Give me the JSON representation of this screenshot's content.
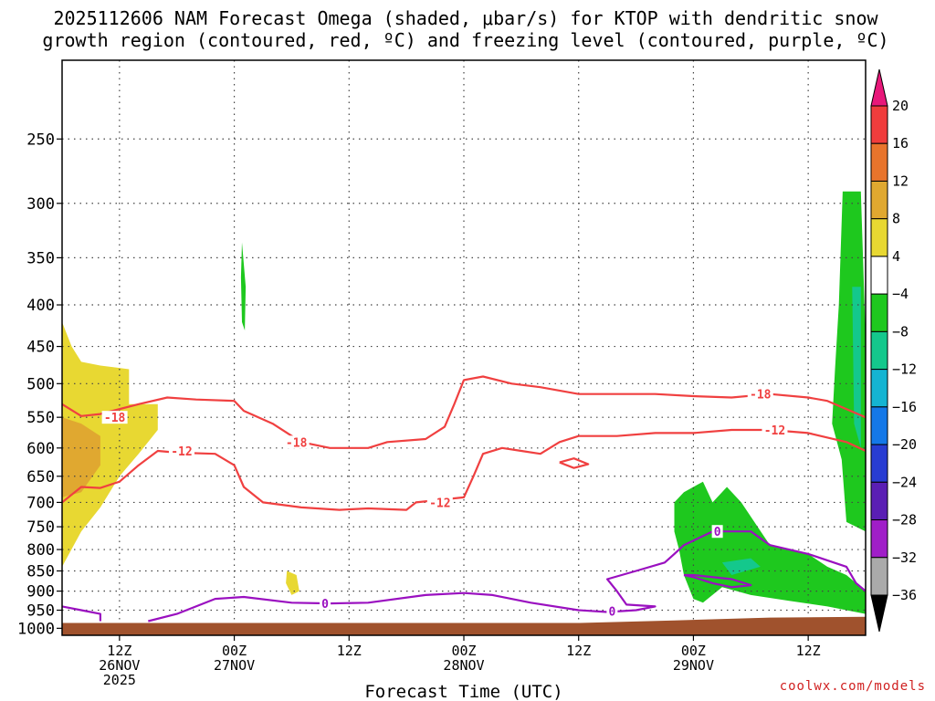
{
  "title_line1": "2025112606 NAM Forecast Omega (shaded, μbar/s) for KTOP with dendritic snow",
  "title_line2": "growth region (contoured, red, ºC) and freezing level (contoured, purple, ºC)",
  "credit": "coolwx.com/models",
  "chart_data": {
    "type": "heatmap",
    "title": "2025112606 NAM Forecast Omega (shaded, μbar/s) for KTOP with dendritic snow growth region (contoured, red, ºC) and freezing level (contoured, purple, ºC)",
    "xlabel": "Forecast Time (UTC)",
    "ylabel": "",
    "x_range_hours": [
      6,
      90
    ],
    "y_scale": "log",
    "y_reversed": true,
    "ylim": [
      1020,
      200
    ],
    "y_ticks": [
      250,
      300,
      350,
      400,
      450,
      500,
      550,
      600,
      650,
      700,
      750,
      800,
      850,
      900,
      950,
      1000
    ],
    "x_ticks": [
      {
        "hour": 12,
        "lines": [
          "12Z",
          "26NOV",
          "2025"
        ]
      },
      {
        "hour": 24,
        "lines": [
          "00Z",
          "27NOV"
        ]
      },
      {
        "hour": 36,
        "lines": [
          "12Z"
        ]
      },
      {
        "hour": 48,
        "lines": [
          "00Z",
          "28NOV"
        ]
      },
      {
        "hour": 60,
        "lines": [
          "12Z"
        ]
      },
      {
        "hour": 72,
        "lines": [
          "00Z",
          "29NOV"
        ]
      },
      {
        "hour": 84,
        "lines": [
          "12Z"
        ]
      }
    ],
    "grid": true,
    "colorbar": {
      "labels": [
        "20",
        "16",
        "12",
        "8",
        "4",
        "−4",
        "−8",
        "−12",
        "−16",
        "−20",
        "−24",
        "−28",
        "−32",
        "−36"
      ],
      "colors": [
        "#e8187a",
        "#f03c3c",
        "#e8742c",
        "#e0a830",
        "#e8d832",
        "#ffffff",
        "#1ec81e",
        "#14c88c",
        "#14b4d2",
        "#1478e8",
        "#283cd2",
        "#5a1eb4",
        "#a01ec8",
        "#aaaaaa",
        "#000000"
      ]
    },
    "omega_regions": [
      {
        "value_range": [
          4,
          8
        ],
        "color": "#e8d832",
        "points": [
          [
            6,
            420
          ],
          [
            7,
            450
          ],
          [
            8,
            470
          ],
          [
            10,
            475
          ],
          [
            13,
            480
          ],
          [
            13,
            530
          ],
          [
            16,
            530
          ],
          [
            16,
            570
          ],
          [
            14,
            610
          ],
          [
            12,
            650
          ],
          [
            10,
            710
          ],
          [
            8,
            760
          ],
          [
            6,
            840
          ]
        ]
      },
      {
        "value_range": [
          8,
          12
        ],
        "color": "#e0a830",
        "points": [
          [
            6,
            550
          ],
          [
            8,
            560
          ],
          [
            10,
            580
          ],
          [
            10,
            630
          ],
          [
            8,
            680
          ],
          [
            6,
            690
          ]
        ]
      },
      {
        "value_range": [
          -8,
          -4
        ],
        "color": "#1ec81e",
        "points": [
          [
            24.8,
            335
          ],
          [
            25.2,
            380
          ],
          [
            25.1,
            430
          ],
          [
            24.8,
            420
          ],
          [
            24.7,
            370
          ]
        ]
      },
      {
        "value_range": [
          4,
          8
        ],
        "color": "#e8d832",
        "points": [
          [
            29.5,
            850
          ],
          [
            30.5,
            860
          ],
          [
            30.8,
            900
          ],
          [
            30,
            910
          ],
          [
            29.4,
            880
          ]
        ]
      },
      {
        "value_range": [
          -8,
          -4
        ],
        "color": "#1ec81e",
        "points": [
          [
            87.6,
            290
          ],
          [
            89.5,
            290
          ],
          [
            90,
            440
          ],
          [
            90,
            760
          ],
          [
            88,
            740
          ],
          [
            87.5,
            620
          ],
          [
            86.5,
            560
          ],
          [
            86.8,
            480
          ],
          [
            87.2,
            400
          ]
        ]
      },
      {
        "value_range": [
          -12,
          -8
        ],
        "color": "#14c88c",
        "points": [
          [
            88.6,
            380
          ],
          [
            89.5,
            380
          ],
          [
            89.5,
            600
          ],
          [
            88.8,
            560
          ]
        ]
      },
      {
        "value_range": [
          -8,
          -4
        ],
        "color": "#1ec81e",
        "points": [
          [
            70,
            700
          ],
          [
            71,
            680
          ],
          [
            73,
            660
          ],
          [
            74,
            700
          ],
          [
            75.5,
            670
          ],
          [
            77,
            700
          ],
          [
            80,
            790
          ],
          [
            84,
            810
          ],
          [
            86,
            840
          ],
          [
            88,
            860
          ],
          [
            90,
            900
          ],
          [
            90,
            960
          ],
          [
            86,
            940
          ],
          [
            82,
            925
          ],
          [
            78,
            910
          ],
          [
            75,
            890
          ],
          [
            73,
            930
          ],
          [
            72,
            920
          ],
          [
            71,
            860
          ],
          [
            70.5,
            800
          ],
          [
            70,
            760
          ]
        ]
      },
      {
        "value_range": [
          -12,
          -8
        ],
        "color": "#14c88c",
        "points": [
          [
            75,
            830
          ],
          [
            78,
            820
          ],
          [
            79,
            840
          ],
          [
            76,
            860
          ]
        ]
      }
    ],
    "contours": [
      {
        "level": "-18",
        "color": "#f04040",
        "points": [
          [
            6,
            530
          ],
          [
            8,
            548
          ],
          [
            10,
            545
          ],
          [
            14,
            530
          ],
          [
            17,
            520
          ],
          [
            20,
            523
          ],
          [
            24,
            525
          ],
          [
            25,
            540
          ],
          [
            28,
            560
          ],
          [
            31,
            590
          ],
          [
            34,
            600
          ],
          [
            38,
            600
          ],
          [
            40,
            590
          ],
          [
            44,
            585
          ],
          [
            46,
            565
          ],
          [
            47,
            530
          ],
          [
            48,
            495
          ],
          [
            50,
            490
          ],
          [
            53,
            500
          ],
          [
            56,
            505
          ],
          [
            60,
            515
          ],
          [
            64,
            515
          ],
          [
            68,
            515
          ],
          [
            72,
            518
          ],
          [
            76,
            520
          ],
          [
            80,
            515
          ],
          [
            84,
            520
          ],
          [
            86,
            525
          ],
          [
            90,
            550
          ]
        ]
      },
      {
        "level": "-12",
        "color": "#f04040",
        "points": [
          [
            6,
            700
          ],
          [
            8,
            670
          ],
          [
            10,
            672
          ],
          [
            12,
            660
          ],
          [
            14,
            630
          ],
          [
            16,
            605
          ],
          [
            18,
            608
          ],
          [
            22,
            610
          ],
          [
            24,
            630
          ],
          [
            25,
            670
          ],
          [
            27,
            700
          ],
          [
            31,
            710
          ],
          [
            35,
            715
          ],
          [
            38,
            712
          ],
          [
            42,
            715
          ],
          [
            43,
            700
          ],
          [
            48,
            690
          ],
          [
            49,
            650
          ],
          [
            50,
            610
          ],
          [
            52,
            600
          ],
          [
            54,
            605
          ],
          [
            56,
            610
          ],
          [
            58,
            590
          ],
          [
            60,
            580
          ],
          [
            64,
            580
          ],
          [
            68,
            575
          ],
          [
            72,
            575
          ],
          [
            76,
            570
          ],
          [
            80,
            570
          ],
          [
            84,
            575
          ],
          [
            88,
            590
          ],
          [
            90,
            605
          ]
        ]
      },
      {
        "level": "-12",
        "color": "#f04040",
        "points": [
          [
            58,
            625
          ],
          [
            59.5,
            618
          ],
          [
            61,
            628
          ],
          [
            59.5,
            635
          ],
          [
            58,
            625
          ]
        ]
      },
      {
        "level": "0",
        "color": "#9a10c0",
        "points": [
          [
            6,
            940
          ],
          [
            8,
            950
          ],
          [
            10,
            960
          ],
          [
            10,
            980
          ]
        ]
      },
      {
        "level": "0",
        "color": "#9a10c0",
        "points": [
          [
            15,
            980
          ],
          [
            18,
            960
          ],
          [
            22,
            920
          ],
          [
            25,
            915
          ],
          [
            30,
            930
          ],
          [
            34,
            932
          ],
          [
            38,
            930
          ],
          [
            44,
            910
          ],
          [
            48,
            905
          ],
          [
            51,
            910
          ],
          [
            55,
            930
          ],
          [
            60,
            950
          ],
          [
            63,
            955
          ],
          [
            66,
            950
          ],
          [
            68,
            940
          ],
          [
            65,
            935
          ],
          [
            64,
            900
          ],
          [
            63,
            870
          ],
          [
            66,
            850
          ],
          [
            69,
            830
          ],
          [
            70,
            810
          ],
          [
            71,
            790
          ],
          [
            72,
            780
          ],
          [
            73,
            770
          ],
          [
            74,
            760
          ],
          [
            75,
            760
          ],
          [
            78,
            760
          ],
          [
            80,
            790
          ],
          [
            84,
            810
          ],
          [
            88,
            840
          ],
          [
            89,
            880
          ],
          [
            90,
            900
          ]
        ]
      },
      {
        "level": "0",
        "color": "#9a10c0",
        "points": [
          [
            71,
            860
          ],
          [
            72,
            865
          ],
          [
            74,
            880
          ],
          [
            76,
            890
          ],
          [
            78,
            885
          ],
          [
            76,
            870
          ],
          [
            72,
            860
          ],
          [
            71,
            860
          ]
        ]
      }
    ],
    "contour_labels": [
      {
        "text": "-18",
        "color": "#f04040",
        "hour": 11.5,
        "p": 550
      },
      {
        "text": "-18",
        "color": "#f04040",
        "hour": 30.5,
        "p": 590
      },
      {
        "text": "-18",
        "color": "#f04040",
        "hour": 79,
        "p": 515
      },
      {
        "text": "-12",
        "color": "#f04040",
        "hour": 18.5,
        "p": 605
      },
      {
        "text": "-12",
        "color": "#f04040",
        "hour": 45.5,
        "p": 700
      },
      {
        "text": "-12",
        "color": "#f04040",
        "hour": 80.5,
        "p": 570
      },
      {
        "text": "0",
        "color": "#9a10c0",
        "hour": 33.5,
        "p": 932
      },
      {
        "text": "0",
        "color": "#9a10c0",
        "hour": 74.5,
        "p": 760
      },
      {
        "text": "0",
        "color": "#9a10c0",
        "hour": 63.5,
        "p": 952
      }
    ],
    "ground_pressure_hPa": [
      [
        6,
        985
      ],
      [
        60,
        985
      ],
      [
        70,
        978
      ],
      [
        80,
        970
      ],
      [
        90,
        968
      ]
    ]
  }
}
